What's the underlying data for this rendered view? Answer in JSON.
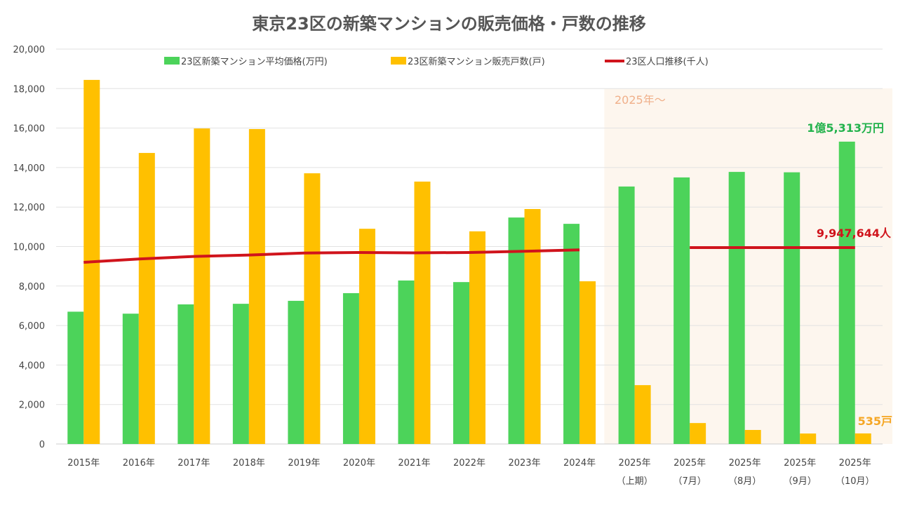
{
  "chart_data": {
    "type": "bar",
    "title": "東京23区の新築マンションの販売価格・戸数の推移",
    "categories": [
      [
        "2015年",
        ""
      ],
      [
        "2016年",
        ""
      ],
      [
        "2017年",
        ""
      ],
      [
        "2018年",
        ""
      ],
      [
        "2019年",
        ""
      ],
      [
        "2020年",
        ""
      ],
      [
        "2021年",
        ""
      ],
      [
        "2022年",
        ""
      ],
      [
        "2023年",
        ""
      ],
      [
        "2024年",
        ""
      ],
      [
        "2025年",
        "（上期）"
      ],
      [
        "2025年",
        "（7月）"
      ],
      [
        "2025年",
        "（8月）"
      ],
      [
        "2025年",
        "（9月）"
      ],
      [
        "2025年",
        "（10月）"
      ]
    ],
    "ylim": [
      0,
      20000
    ],
    "yticks": [
      "0",
      "2,000",
      "4,000",
      "6,000",
      "8,000",
      "10,000",
      "12,000",
      "14,000",
      "16,000",
      "18,000",
      "20,000"
    ],
    "grid": true,
    "legend_position": "top",
    "series": [
      {
        "name": "23区新築マンション平均価格(万円)",
        "type": "bar",
        "color": "#4cd35a",
        "values": [
          6700,
          6600,
          7070,
          7100,
          7250,
          7640,
          8280,
          8200,
          11470,
          11150,
          13040,
          13500,
          13780,
          13760,
          15313
        ]
      },
      {
        "name": "23区新築マンション販売戸数(戸)",
        "type": "bar",
        "color": "#ffc000",
        "values": [
          18440,
          14740,
          15980,
          15950,
          13710,
          10900,
          13290,
          10770,
          11900,
          8240,
          2980,
          1060,
          710,
          530,
          535
        ]
      },
      {
        "name": "23区人口推移(千人)",
        "type": "line",
        "color": "#d0141c",
        "values": [
          9200,
          9370,
          9500,
          9570,
          9670,
          9700,
          9680,
          9700,
          9760,
          9830,
          null,
          9947.6,
          9947.6,
          9947.6,
          9947.6
        ]
      }
    ],
    "annotations": {
      "region_label": "2025年〜",
      "price_label": "1億5,313万円",
      "population_label": "9,947,644人",
      "units_label": "535戸"
    },
    "colors": {
      "region_shade": "#fdf6ee",
      "region_text": "#f0b08a",
      "price_text": "#22b24c",
      "pop_text": "#d0141c",
      "units_text": "#f5a623"
    }
  }
}
